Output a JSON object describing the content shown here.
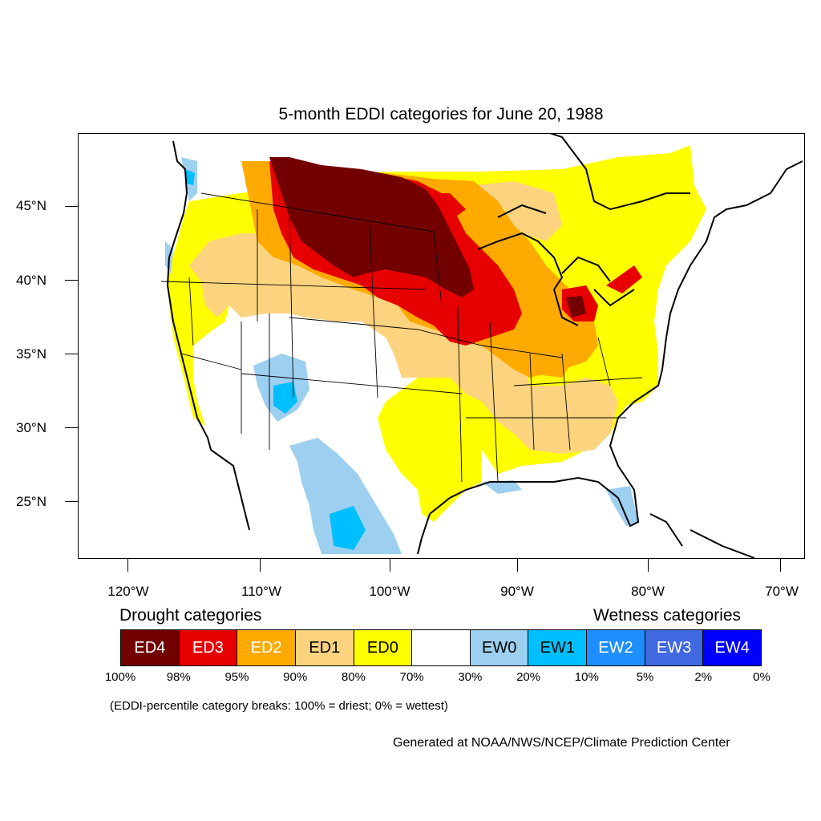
{
  "map": {
    "title": "5-month EDDI categories for June 20, 1988",
    "latitude_labels": [
      "45°N",
      "40°N",
      "35°N",
      "30°N",
      "25°N"
    ],
    "longitude_labels": [
      "120°W",
      "110°W",
      "100°W",
      "90°W",
      "80°W",
      "70°W"
    ]
  },
  "legend": {
    "drought_heading": "Drought categories",
    "wetness_heading": "Wetness categories",
    "categories": [
      {
        "label": "ED4",
        "color": "#730000",
        "text_color": "#ffffff"
      },
      {
        "label": "ED3",
        "color": "#e60000",
        "text_color": "#ffffff"
      },
      {
        "label": "ED2",
        "color": "#ffaa00",
        "text_color": "#ffffff"
      },
      {
        "label": "ED1",
        "color": "#fcd37f",
        "text_color": "#000000"
      },
      {
        "label": "ED0",
        "color": "#ffff00",
        "text_color": "#000000"
      },
      {
        "label": "",
        "color": "#ffffff",
        "text_color": "#000000"
      },
      {
        "label": "EW0",
        "color": "#9dcff0",
        "text_color": "#000000"
      },
      {
        "label": "EW1",
        "color": "#00bfff",
        "text_color": "#000000"
      },
      {
        "label": "EW2",
        "color": "#1e8fff",
        "text_color": "#ffffff"
      },
      {
        "label": "EW3",
        "color": "#4169e1",
        "text_color": "#ffffff"
      },
      {
        "label": "EW4",
        "color": "#0000ff",
        "text_color": "#ffffff"
      }
    ],
    "percent_breaks": [
      "100%",
      "98%",
      "95%",
      "90%",
      "80%",
      "70%",
      "30%",
      "20%",
      "10%",
      "5%",
      "2%",
      "0%"
    ],
    "note": "(EDDI-percentile category breaks: 100% = driest; 0% = wettest)"
  },
  "credit": "Generated at NOAA/NWS/NCEP/Climate Prediction Center"
}
